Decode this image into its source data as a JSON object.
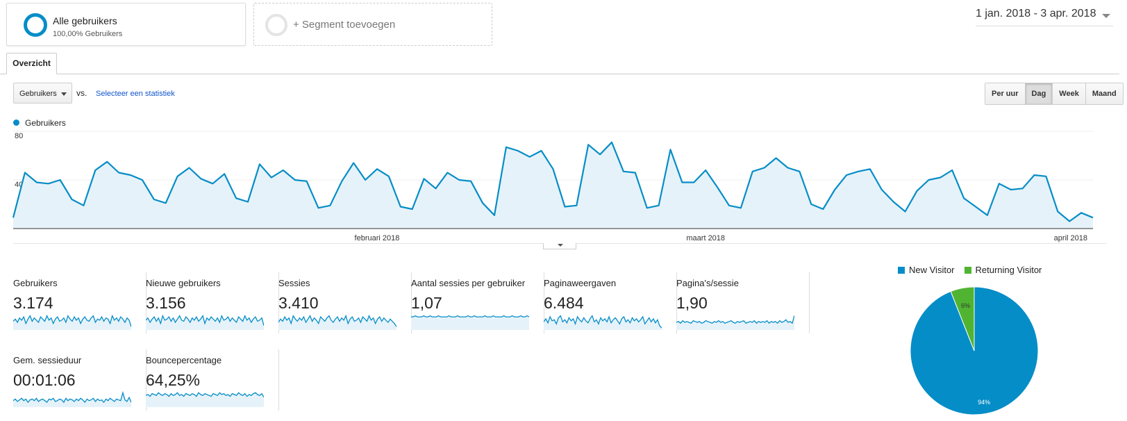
{
  "segments": {
    "active": {
      "name": "Alle gebruikers",
      "sub": "100,00% Gebruikers"
    },
    "add_label": "+ Segment toevoegen"
  },
  "date_range": "1 jan. 2018 - 3 apr. 2018",
  "tabs": [
    {
      "label": "Overzicht"
    }
  ],
  "toolbar": {
    "metric_select": "Gebruikers",
    "vs_label": "vs.",
    "select_stat": "Selecteer een statistiek",
    "periods": [
      "Per uur",
      "Dag",
      "Week",
      "Maand"
    ],
    "selected_period": "Dag"
  },
  "colors": {
    "accent": "#058dc7",
    "returning": "#50b432",
    "fill": "#e6f2f9"
  },
  "chart_data": [
    {
      "type": "area",
      "legend": "Gebruikers",
      "y_ticks": [
        "80",
        "40"
      ],
      "ylim": [
        0,
        80
      ],
      "x_labels": [
        {
          "label": "februari 2018",
          "index": 31
        },
        {
          "label": "maart 2018",
          "index": 59
        },
        {
          "label": "april 2018",
          "index": 90
        }
      ],
      "series": [
        {
          "name": "Gebruikers",
          "values": [
            9,
            46,
            38,
            37,
            40,
            24,
            19,
            48,
            55,
            46,
            44,
            40,
            24,
            21,
            43,
            50,
            41,
            37,
            45,
            25,
            22,
            53,
            42,
            48,
            40,
            39,
            17,
            19,
            39,
            54,
            40,
            49,
            43,
            18,
            16,
            41,
            33,
            46,
            40,
            39,
            21,
            11,
            67,
            64,
            59,
            64,
            49,
            18,
            19,
            69,
            61,
            71,
            47,
            46,
            17,
            19,
            65,
            38,
            38,
            48,
            34,
            19,
            17,
            47,
            50,
            58,
            50,
            47,
            20,
            16,
            32,
            44,
            47,
            49,
            32,
            22,
            14,
            31,
            40,
            42,
            48,
            25,
            18,
            11,
            37,
            32,
            33,
            44,
            43,
            14,
            6,
            13,
            9
          ]
        }
      ]
    },
    {
      "type": "pie",
      "legend": [
        "New Visitor",
        "Returning Visitor"
      ],
      "values": [
        94,
        6
      ],
      "labels": [
        "94%",
        "6%"
      ],
      "colors": [
        "#058dc7",
        "#50b432"
      ]
    }
  ],
  "metrics": [
    {
      "label": "Gebruikers",
      "value": "3.174",
      "spark": [
        8,
        10,
        7,
        11,
        9,
        12,
        6,
        10,
        13,
        8,
        11,
        9,
        7,
        12,
        10,
        8,
        13,
        9,
        11,
        6,
        10,
        12,
        8,
        9,
        11,
        7,
        13,
        10,
        8,
        12,
        9,
        11,
        6,
        10,
        12,
        9,
        8,
        11,
        13,
        7,
        10,
        9,
        12,
        8,
        11,
        10,
        6,
        13,
        9,
        11,
        8,
        12,
        10,
        7,
        11,
        9,
        3
      ]
    },
    {
      "label": "Nieuwe gebruikers",
      "value": "3.156",
      "spark": [
        9,
        11,
        7,
        10,
        12,
        8,
        11,
        6,
        13,
        9,
        10,
        12,
        8,
        11,
        7,
        10,
        13,
        9,
        8,
        12,
        10,
        7,
        11,
        9,
        12,
        8,
        10,
        13,
        6,
        11,
        9,
        12,
        10,
        8,
        11,
        7,
        13,
        9,
        10,
        12,
        8,
        11,
        9,
        7,
        12,
        10,
        8,
        13,
        9,
        11,
        7,
        10,
        12,
        8,
        9,
        11,
        4
      ]
    },
    {
      "label": "Sessies",
      "value": "3.410",
      "spark": [
        7,
        10,
        8,
        12,
        9,
        11,
        6,
        13,
        10,
        8,
        11,
        9,
        12,
        7,
        10,
        13,
        8,
        11,
        9,
        6,
        12,
        10,
        8,
        11,
        13,
        9,
        7,
        10,
        12,
        8,
        11,
        9,
        13,
        6,
        10,
        12,
        8,
        9,
        11,
        7,
        12,
        10,
        8,
        13,
        9,
        11,
        6,
        10,
        12,
        8,
        11,
        9,
        7,
        10,
        8,
        6,
        3
      ]
    },
    {
      "label": "Aantal sessies per gebruiker",
      "value": "1,07",
      "spark": [
        12,
        12,
        13,
        12,
        12,
        12,
        13,
        12,
        12,
        13,
        12,
        12,
        12,
        13,
        12,
        12,
        12,
        12,
        13,
        12,
        12,
        12,
        13,
        12,
        12,
        12,
        12,
        13,
        12,
        12,
        13,
        12,
        12,
        12,
        12,
        13,
        12,
        12,
        12,
        13,
        12,
        12,
        12,
        12,
        13,
        12,
        12,
        12,
        13,
        12,
        12,
        12,
        13,
        12,
        12,
        13,
        12
      ]
    },
    {
      "label": "Paginaweergaven",
      "value": "6.484",
      "spark": [
        8,
        11,
        7,
        13,
        9,
        10,
        6,
        12,
        14,
        8,
        10,
        7,
        12,
        9,
        11,
        6,
        13,
        10,
        8,
        12,
        9,
        7,
        11,
        14,
        8,
        10,
        6,
        12,
        9,
        11,
        8,
        13,
        7,
        10,
        12,
        9,
        6,
        11,
        13,
        8,
        10,
        7,
        12,
        9,
        11,
        8,
        10,
        13,
        6,
        9,
        12,
        8,
        11,
        7,
        10,
        4,
        2
      ]
    },
    {
      "label": "Pagina's/sessie",
      "value": "1,90",
      "spark": [
        9,
        10,
        8,
        11,
        9,
        10,
        9,
        8,
        11,
        10,
        9,
        10,
        8,
        9,
        11,
        10,
        9,
        8,
        10,
        9,
        11,
        9,
        10,
        8,
        9,
        10,
        11,
        9,
        8,
        10,
        9,
        10,
        11,
        8,
        9,
        10,
        9,
        11,
        8,
        10,
        9,
        10,
        9,
        11,
        8,
        10,
        9,
        10,
        8,
        11,
        9,
        10,
        12,
        9,
        10,
        8,
        17
      ]
    },
    {
      "label": "Gem. sessieduur",
      "value": "00:01:06",
      "spark": [
        8,
        10,
        7,
        9,
        11,
        8,
        10,
        6,
        9,
        10,
        8,
        11,
        7,
        9,
        10,
        8,
        6,
        10,
        9,
        11,
        7,
        8,
        10,
        9,
        6,
        11,
        8,
        10,
        9,
        7,
        10,
        8,
        11,
        9,
        6,
        10,
        8,
        9,
        11,
        7,
        10,
        8,
        9,
        6,
        10,
        8,
        11,
        9,
        7,
        10,
        9,
        8,
        18,
        9,
        7,
        12,
        6
      ]
    },
    {
      "label": "Bouncepercentage",
      "value": "64,25%",
      "spark": [
        13,
        14,
        12,
        15,
        14,
        13,
        16,
        14,
        13,
        15,
        14,
        12,
        15,
        13,
        14,
        16,
        13,
        14,
        12,
        15,
        14,
        13,
        15,
        14,
        12,
        16,
        14,
        13,
        15,
        14,
        13,
        12,
        15,
        14,
        13,
        16,
        14,
        15,
        13,
        14,
        12,
        15,
        14,
        13,
        16,
        14,
        13,
        15,
        12,
        14,
        13,
        15,
        16,
        14,
        13,
        15,
        11
      ]
    }
  ]
}
